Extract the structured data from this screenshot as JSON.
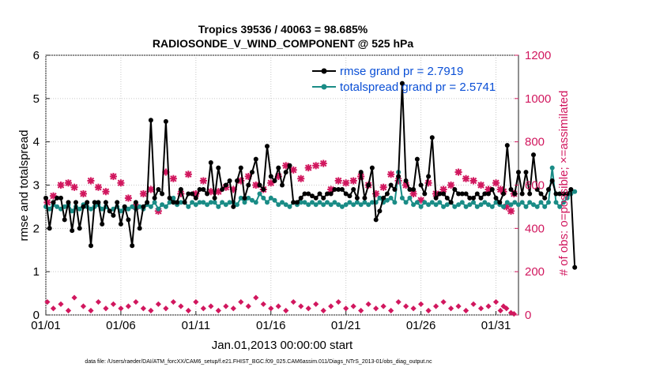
{
  "chart_data": {
    "type": "line",
    "title": "Tropics 39536 / 40063 = 98.685%",
    "subtitle": "RADIOSONDE_V_WIND_COMPONENT @ 525 hPa",
    "xlabel": "Jan.01,2013 00:00:00 start",
    "ylabel": "rmse and totalspread",
    "ylabel_right": "# of obs: o=possible; ×=assimilated",
    "xlim": [
      1,
      32.5
    ],
    "ylim": [
      0,
      6
    ],
    "ylim_right": [
      0,
      1200
    ],
    "x_ticks": [
      {
        "value": 1,
        "label": "01/01"
      },
      {
        "value": 6,
        "label": "01/06"
      },
      {
        "value": 11,
        "label": "01/11"
      },
      {
        "value": 16,
        "label": "01/16"
      },
      {
        "value": 21,
        "label": "01/21"
      },
      {
        "value": 26,
        "label": "01/26"
      },
      {
        "value": 31,
        "label": "01/31"
      }
    ],
    "y_ticks": [
      "0",
      "1",
      "2",
      "3",
      "4",
      "5",
      "6"
    ],
    "y_ticks_right": [
      "0",
      "200",
      "400",
      "600",
      "800",
      "1000",
      "1200"
    ],
    "footnote": "data file: /Users/raeder/DAI/ATM_forcXX/CAM6_setup/f.e21.FHIST_BGC.f09_025.CAM6assim.011/Diags_NTrS_2013-01/obs_diag_output.nc",
    "x_start": 1,
    "x_step": 0.25,
    "series": [
      {
        "name": "rmse",
        "legend": "rmse grand pr = 2.7919",
        "color": "#000000",
        "axis": "left",
        "values": [
          2.7,
          2.0,
          2.6,
          2.7,
          2.7,
          2.2,
          2.6,
          1.95,
          2.6,
          2.0,
          2.5,
          2.6,
          1.6,
          2.6,
          2.6,
          2.1,
          2.6,
          2.4,
          2.3,
          2.6,
          2.1,
          2.5,
          2.2,
          1.6,
          2.6,
          2.0,
          2.5,
          2.6,
          4.5,
          2.7,
          2.9,
          2.8,
          4.47,
          2.7,
          2.6,
          2.6,
          2.9,
          2.6,
          2.8,
          2.8,
          2.7,
          2.9,
          2.9,
          2.8,
          3.52,
          2.7,
          3.4,
          2.9,
          3.0,
          3.1,
          2.5,
          3.1,
          3.4,
          2.7,
          3.0,
          3.3,
          3.6,
          3.0,
          2.9,
          3.9,
          3.2,
          3.1,
          3.4,
          3.0,
          3.3,
          3.45,
          2.6,
          2.6,
          2.7,
          2.8,
          2.8,
          2.75,
          2.7,
          2.8,
          2.7,
          2.8,
          2.8,
          2.9,
          2.9,
          2.9,
          2.8,
          2.75,
          2.9,
          2.7,
          3.3,
          2.7,
          3.0,
          3.4,
          2.2,
          2.4,
          2.7,
          2.8,
          3.0,
          2.9,
          3.2,
          5.35,
          3.1,
          2.9,
          2.9,
          3.6,
          3.0,
          2.8,
          3.2,
          4.1,
          2.7,
          2.8,
          2.8,
          2.7,
          2.6,
          2.9,
          2.8,
          2.8,
          2.8,
          2.7,
          2.7,
          2.8,
          2.7,
          2.8,
          2.8,
          2.9,
          2.7,
          2.6,
          2.8,
          3.92,
          2.9,
          2.8,
          3.3,
          2.8,
          3.3,
          2.8,
          3.7,
          2.9,
          2.8,
          2.7,
          2.9,
          3.1,
          2.8,
          2.8,
          2.8,
          2.8,
          2.9,
          1.1
        ]
      },
      {
        "name": "totalspread",
        "legend": "totalspread grand pr = 2.5741",
        "color": "#1a8c86",
        "axis": "left",
        "values": [
          2.5,
          2.45,
          2.55,
          2.5,
          2.45,
          2.5,
          2.55,
          2.4,
          2.5,
          2.45,
          2.55,
          2.5,
          2.45,
          2.5,
          2.55,
          2.45,
          2.5,
          2.4,
          2.45,
          2.5,
          2.4,
          2.5,
          2.45,
          2.5,
          2.45,
          2.5,
          2.45,
          2.55,
          2.5,
          2.6,
          2.45,
          2.55,
          2.5,
          2.6,
          2.7,
          2.55,
          2.6,
          2.6,
          2.5,
          2.6,
          2.55,
          2.6,
          2.6,
          2.55,
          2.6,
          2.6,
          2.5,
          2.6,
          2.55,
          2.6,
          2.6,
          2.55,
          2.7,
          2.6,
          2.7,
          2.65,
          2.6,
          2.8,
          2.7,
          2.6,
          2.7,
          2.65,
          2.55,
          2.6,
          2.55,
          2.5,
          2.6,
          2.55,
          2.6,
          2.6,
          2.55,
          2.6,
          2.55,
          2.6,
          2.55,
          2.6,
          2.55,
          2.6,
          2.55,
          2.5,
          2.55,
          2.6,
          2.55,
          2.6,
          2.55,
          2.6,
          2.55,
          2.6,
          2.6,
          2.7,
          2.6,
          2.65,
          2.7,
          2.6,
          3.3,
          2.7,
          2.6,
          2.7,
          2.55,
          2.6,
          2.5,
          2.6,
          2.55,
          2.6,
          2.55,
          2.6,
          2.5,
          2.55,
          2.6,
          2.5,
          2.55,
          2.6,
          2.5,
          2.55,
          2.6,
          2.5,
          2.55,
          2.6,
          2.55,
          2.5,
          2.6,
          2.55,
          2.5,
          2.6,
          2.55,
          2.6,
          2.55,
          2.6,
          2.5,
          2.6,
          2.55,
          2.5,
          2.6,
          2.5,
          2.6,
          3.4,
          2.6,
          2.5,
          2.6,
          2.7,
          2.8,
          2.85
        ]
      }
    ],
    "scatter": [
      {
        "name": "assimilated",
        "marker": "x",
        "color": "#d1175e",
        "axis": "right",
        "x": [
          1.1,
          1.5,
          2.0,
          2.5,
          2.9,
          3.5,
          4.0,
          4.5,
          5.0,
          5.5,
          6.0,
          6.5,
          7.0,
          7.5,
          8.0,
          8.5,
          9.0,
          9.5,
          10.0,
          10.5,
          11.0,
          11.5,
          12.0,
          12.5,
          13.0,
          13.5,
          14.0,
          14.5,
          15.0,
          15.5,
          16.0,
          16.5,
          17.0,
          17.5,
          18.0,
          18.5,
          19.0,
          19.5,
          20.0,
          20.5,
          21.0,
          21.5,
          22.0,
          22.5,
          23.0,
          23.5,
          24.0,
          24.5,
          25.0,
          25.5,
          26.0,
          26.5,
          27.0,
          27.5,
          28.0,
          28.5,
          29.0,
          29.5,
          30.0,
          30.5,
          31.0,
          31.3,
          31.5,
          31.7,
          32.0,
          32.2
        ],
        "values": [
          520,
          550,
          600,
          610,
          590,
          560,
          620,
          590,
          570,
          640,
          610,
          540,
          500,
          560,
          580,
          480,
          660,
          630,
          560,
          650,
          560,
          620,
          570,
          570,
          590,
          580,
          620,
          640,
          600,
          580,
          610,
          640,
          690,
          670,
          630,
          680,
          690,
          700,
          580,
          620,
          610,
          620,
          640,
          600,
          560,
          590,
          650,
          620,
          600,
          560,
          530,
          610,
          560,
          580,
          600,
          660,
          630,
          620,
          600,
          580,
          610,
          580,
          570,
          500,
          480,
          560
        ]
      },
      {
        "name": "possible",
        "marker": "diamond",
        "color": "#d1175e",
        "axis": "right",
        "x": [
          1.1,
          1.5,
          2.0,
          2.5,
          2.9,
          3.5,
          4.0,
          4.5,
          5.0,
          5.5,
          6.0,
          6.5,
          7.0,
          7.5,
          8.0,
          8.5,
          9.0,
          9.5,
          10.0,
          10.5,
          11.0,
          11.5,
          12.0,
          12.5,
          13.0,
          13.5,
          14.0,
          14.5,
          15.0,
          15.5,
          16.0,
          16.5,
          17.0,
          17.5,
          18.0,
          18.5,
          19.0,
          19.5,
          20.0,
          20.5,
          21.0,
          21.5,
          22.0,
          22.5,
          23.0,
          23.5,
          24.0,
          24.5,
          25.0,
          25.5,
          26.0,
          26.5,
          27.0,
          27.5,
          28.0,
          28.5,
          29.0,
          29.5,
          30.0,
          30.5,
          31.0,
          31.3,
          31.5,
          31.7,
          32.0,
          32.2
        ],
        "values": [
          60,
          30,
          50,
          20,
          80,
          40,
          20,
          60,
          30,
          50,
          30,
          40,
          60,
          30,
          20,
          50,
          30,
          60,
          40,
          20,
          60,
          30,
          40,
          20,
          40,
          30,
          60,
          40,
          80,
          50,
          30,
          40,
          20,
          60,
          40,
          30,
          50,
          20,
          40,
          60,
          30,
          40,
          20,
          50,
          30,
          40,
          20,
          60,
          40,
          30,
          50,
          20,
          40,
          60,
          30,
          40,
          20,
          50,
          30,
          40,
          60,
          20,
          40,
          30,
          10,
          5
        ]
      }
    ]
  }
}
